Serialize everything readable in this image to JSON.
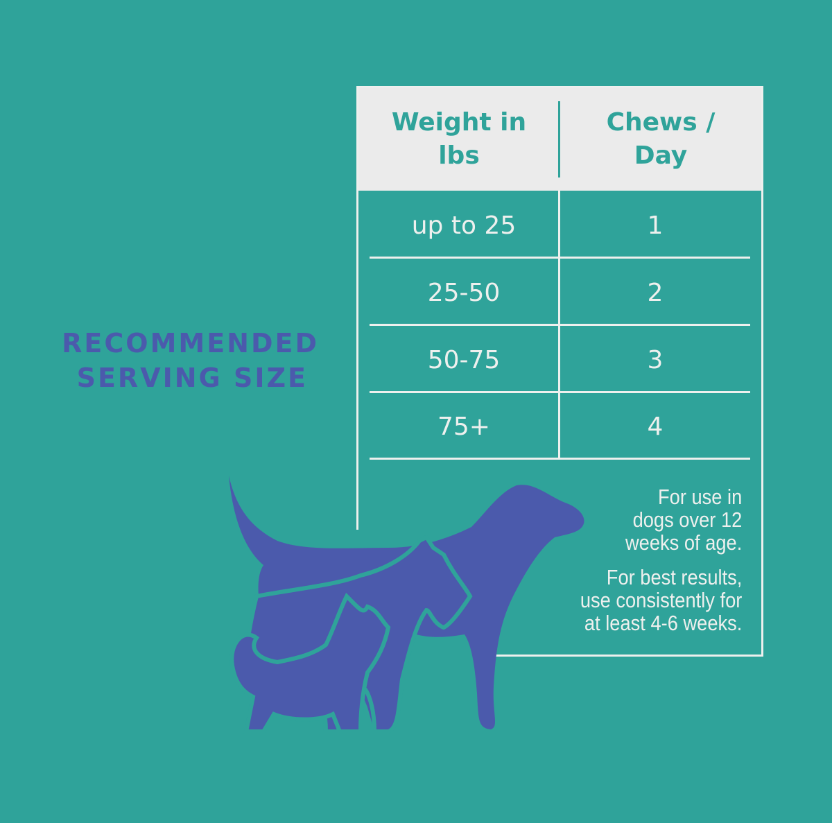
{
  "title": {
    "line1": "RECOMMENDED",
    "line2": "SERVING SIZE"
  },
  "table": {
    "headers": [
      "Weight in lbs",
      "Chews / Day"
    ],
    "header_lines": [
      [
        "Weight in",
        "lbs"
      ],
      [
        "Chews /",
        "Day"
      ]
    ],
    "rows": [
      {
        "weight": "up to 25",
        "chews": "1"
      },
      {
        "weight": "25-50",
        "chews": "2"
      },
      {
        "weight": "50-75",
        "chews": "3"
      },
      {
        "weight": "75+",
        "chews": "4"
      }
    ]
  },
  "notes": {
    "usage": [
      "For use in",
      "dogs over 12",
      "weeks of age."
    ],
    "results": [
      "For best results,",
      "use consistently for",
      "at least 4-6 weeks."
    ]
  },
  "illustration": {
    "icon": "dog-and-cat-silhouettes-icon"
  },
  "colors": {
    "background": "#2fa39a",
    "accent": "#4b5aac",
    "header_bg": "#ebebeb",
    "text_light": "#eef0ee"
  }
}
